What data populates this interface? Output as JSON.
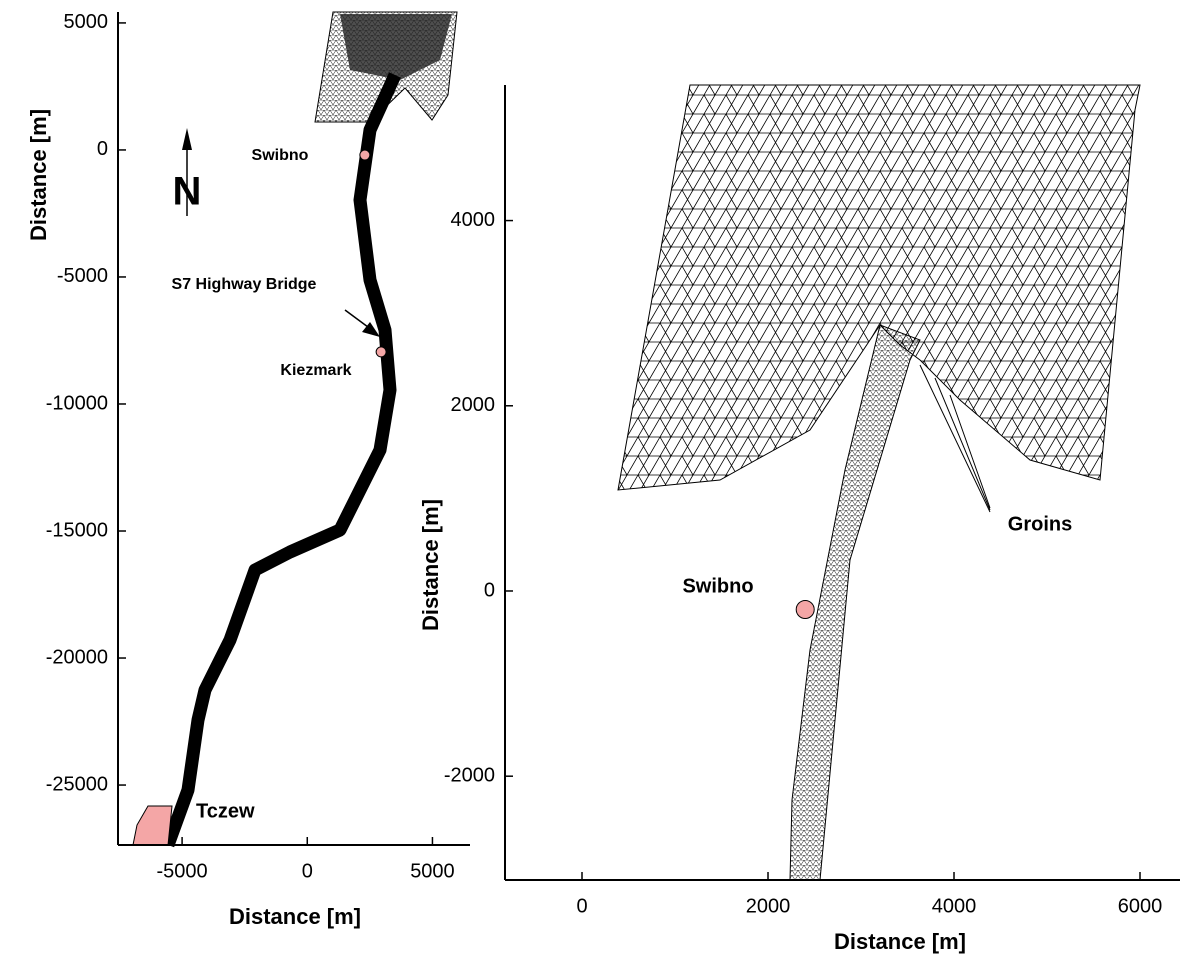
{
  "chart_data": [
    {
      "type": "map",
      "xlabel": "Distance [m]",
      "ylabel": "Distance [m]",
      "xlim": [
        -7560,
        6500
      ],
      "ylim": [
        -27360,
        5430
      ],
      "xticks": [
        -5000,
        0,
        5000
      ],
      "yticks": [
        5000,
        0,
        -5000,
        -10000,
        -15000,
        -20000,
        -25000
      ],
      "points": [
        {
          "label": "Swibno",
          "x": 2300,
          "y": -200
        },
        {
          "label": "Kiezmark",
          "x": 2950,
          "y": -7950
        }
      ],
      "annotations": [
        "S7 Highway Bridge",
        "Tczew",
        "N"
      ]
    },
    {
      "type": "map",
      "xlabel": "Distance [m]",
      "ylabel": "Distance [m]",
      "xlim": [
        -828,
        6430
      ],
      "ylim": [
        -3121,
        5464
      ],
      "xticks": [
        0,
        2000,
        4000,
        6000
      ],
      "yticks": [
        4000,
        2000,
        0,
        -2000
      ],
      "points": [
        {
          "label": "Swibno",
          "x": 2400,
          "y": -200
        }
      ],
      "annotations": [
        "Groins"
      ]
    }
  ]
}
